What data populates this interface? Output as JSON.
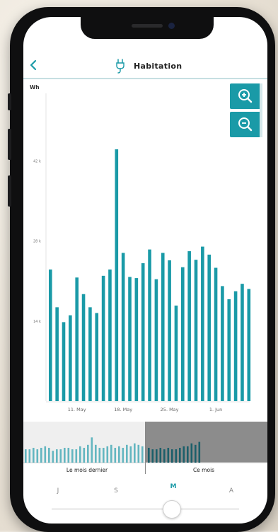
{
  "header": {
    "back_label": "<",
    "title": "Habitation",
    "icon": "plug-icon"
  },
  "colors": {
    "accent": "#1a9aa7",
    "bar": "#1a9aa7"
  },
  "zoom": {
    "in_icon": "zoom-in-icon",
    "out_icon": "zoom-out-icon"
  },
  "chart_data": {
    "type": "bar",
    "ylabel": "Wh",
    "yticks": [
      {
        "value": 14000,
        "label": "14 k"
      },
      {
        "value": 28000,
        "label": "28 k"
      },
      {
        "value": 42000,
        "label": "42 k"
      }
    ],
    "ylim": [
      0,
      56000
    ],
    "xticks": [
      {
        "index": 4,
        "label": "11. May"
      },
      {
        "index": 11,
        "label": "18. May"
      },
      {
        "index": 18,
        "label": "25. May"
      },
      {
        "index": 25,
        "label": "1. Jun"
      }
    ],
    "values": [
      23000,
      16400,
      13800,
      15000,
      21600,
      18700,
      16400,
      15400,
      21900,
      23000,
      44000,
      25900,
      21700,
      21500,
      24100,
      26500,
      21300,
      25900,
      24600,
      16700,
      23400,
      26200,
      24700,
      27000,
      25600,
      23300,
      20100,
      17800,
      19200,
      20500,
      19600
    ],
    "grid": false,
    "legend": "none"
  },
  "navigator": {
    "previous_label": "Le mois dernier",
    "current_label": "Ce mois",
    "previous_values": [
      9,
      9,
      10,
      9,
      10,
      11,
      10,
      8,
      9,
      9,
      10,
      10,
      9,
      9,
      11,
      10,
      12,
      17,
      12,
      10,
      10,
      11,
      12,
      10,
      11,
      10,
      12,
      11,
      13,
      12,
      11
    ],
    "current_values": [
      10,
      9,
      9,
      10,
      9,
      10,
      9,
      9,
      10,
      11,
      11,
      13,
      12,
      14
    ]
  },
  "periods": [
    {
      "label": "J",
      "active": false
    },
    {
      "label": "S",
      "active": false
    },
    {
      "label": "M",
      "active": true
    },
    {
      "label": "A",
      "active": false
    }
  ]
}
